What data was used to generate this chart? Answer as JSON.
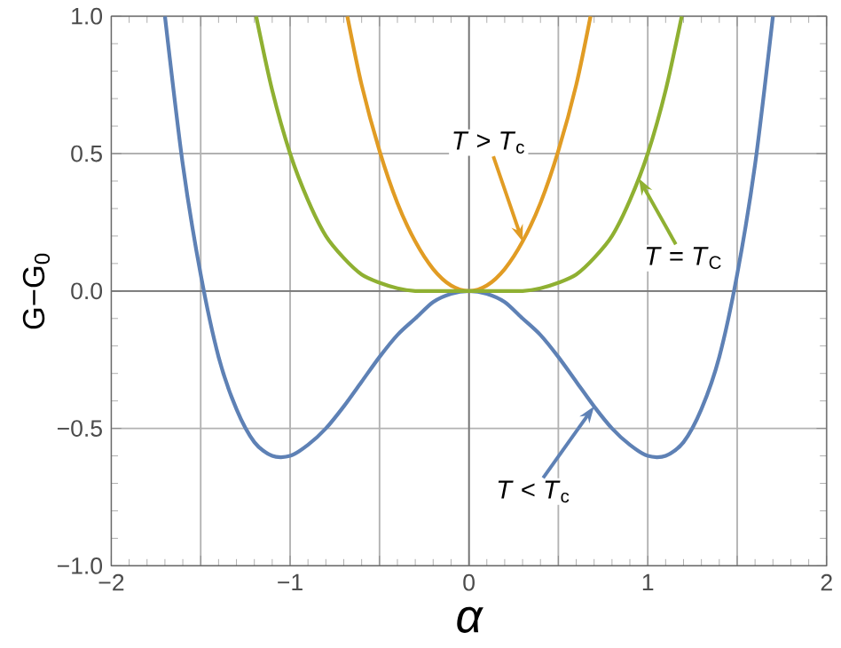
{
  "chart_data": {
    "type": "line",
    "xlabel": "α",
    "ylabel": "G−G$_{0}$",
    "xlim": [
      -2,
      2
    ],
    "ylim": [
      -1,
      1
    ],
    "xticks": [
      {
        "value": -2,
        "label": "−2"
      },
      {
        "value": -1.5,
        "label": null
      },
      {
        "value": -1,
        "label": "−1"
      },
      {
        "value": -0.5,
        "label": null
      },
      0,
      {
        "value": 0.5,
        "label": null
      },
      1,
      {
        "value": 1.5,
        "label": null
      },
      2
    ],
    "yticks": [
      {
        "value": -1,
        "label": "−1.0"
      },
      {
        "value": -0.5,
        "label": "−0.5"
      },
      {
        "value": 0,
        "label": "0.0"
      },
      {
        "value": 0.5,
        "label": "0.5"
      },
      {
        "value": 1,
        "label": "1.0"
      }
    ],
    "grid": true,
    "marker": "none",
    "line_style": "solid",
    "series": [
      {
        "color": "#5e81b5",
        "x": [
          -1.7,
          -1.6,
          -1.5,
          -1.4,
          -1.3,
          -1.2,
          -1.1,
          -1.0,
          -0.9,
          -0.8,
          -0.7,
          -0.6,
          -0.5,
          -0.4,
          -0.3,
          -0.2,
          -0.1,
          0,
          0.1,
          0.2,
          0.3,
          0.4,
          0.5,
          0.6,
          0.7,
          0.8,
          0.9,
          1.0,
          1.1,
          1.2,
          1.3,
          1.4,
          1.5,
          1.6,
          1.7
        ],
        "values": [
          1.0,
          0.46,
          0.06,
          -0.24,
          -0.43,
          -0.55,
          -0.6,
          -0.6,
          -0.56,
          -0.5,
          -0.42,
          -0.33,
          -0.24,
          -0.16,
          -0.1,
          -0.04,
          -0.01,
          0,
          -0.01,
          -0.04,
          -0.1,
          -0.16,
          -0.24,
          -0.33,
          -0.42,
          -0.5,
          -0.56,
          -0.6,
          -0.6,
          -0.55,
          -0.43,
          -0.24,
          0.06,
          0.46,
          1.0
        ]
      },
      {
        "color": "#e19c24",
        "x": [
          -0.68,
          -0.6,
          -0.5,
          -0.4,
          -0.3,
          -0.2,
          -0.1,
          0,
          0.1,
          0.2,
          0.3,
          0.4,
          0.5,
          0.6,
          0.68
        ],
        "values": [
          1.0,
          0.75,
          0.51,
          0.32,
          0.18,
          0.08,
          0.02,
          0,
          0.02,
          0.08,
          0.18,
          0.32,
          0.51,
          0.75,
          1.0
        ]
      },
      {
        "color": "#8fb032",
        "x": [
          -1.19,
          -1.1,
          -1.0,
          -0.9,
          -0.8,
          -0.7,
          -0.6,
          -0.5,
          -0.4,
          -0.3,
          -0.2,
          0,
          0.2,
          0.3,
          0.4,
          0.5,
          0.6,
          0.7,
          0.8,
          0.9,
          1.0,
          1.1,
          1.19
        ],
        "values": [
          1.0,
          0.73,
          0.5,
          0.33,
          0.2,
          0.12,
          0.06,
          0.03,
          0.01,
          0.0,
          0.0,
          0,
          0.0,
          0.0,
          0.01,
          0.03,
          0.06,
          0.12,
          0.2,
          0.33,
          0.5,
          0.73,
          1.0
        ]
      }
    ],
    "annotations": [
      {
        "text": "*T* < *T*$_{c}$",
        "x": 0.7,
        "y": -0.42
      },
      {
        "text": "*T* > *T*$_{c}$",
        "x": 0.3,
        "y": 0.18
      },
      {
        "text": "*T* = *T*$_{C}$",
        "x": 0.95,
        "y": 0.41
      }
    ]
  }
}
